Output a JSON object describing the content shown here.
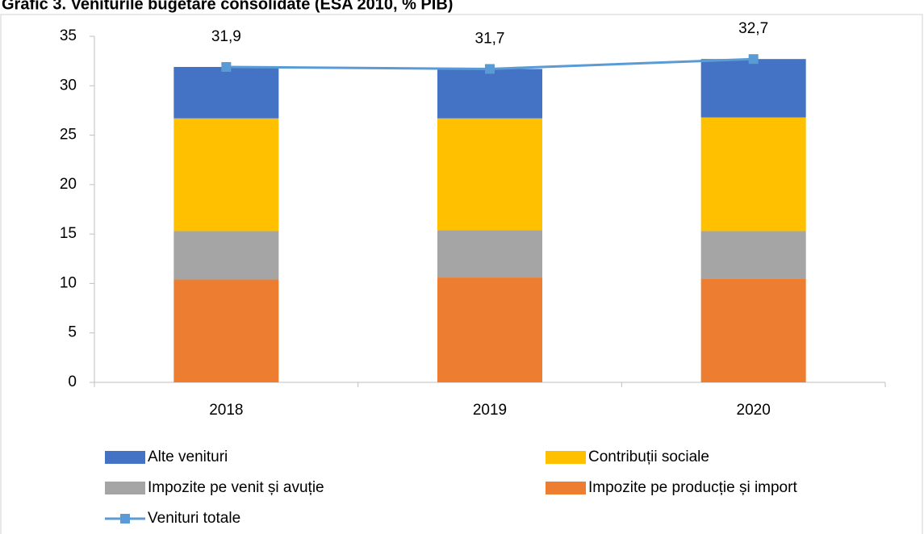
{
  "chart_data": {
    "type": "bar",
    "stacked": true,
    "title": "Grafic 3. Veniturile bugetare consolidate (ESA 2010, % PIB)",
    "categories": [
      "2018",
      "2019",
      "2020"
    ],
    "series": [
      {
        "name": "Impozite pe producție și import",
        "color": "#ed7d31",
        "values": [
          10.4,
          10.6,
          10.5
        ]
      },
      {
        "name": "Impozite pe venit și avuție",
        "color": "#a5a5a5",
        "values": [
          4.9,
          4.8,
          4.8
        ]
      },
      {
        "name": "Contribuții sociale",
        "color": "#ffc000",
        "values": [
          11.4,
          11.3,
          11.5
        ]
      },
      {
        "name": "Alte venituri",
        "color": "#4472c4",
        "values": [
          5.2,
          5.0,
          5.9
        ]
      },
      {
        "name": "Venituri totale",
        "type": "line",
        "color": "#5b9bd5",
        "values": [
          31.9,
          31.7,
          32.7
        ],
        "value_labels": [
          "31,9",
          "31,7",
          "32,7"
        ]
      }
    ],
    "ylim": [
      0,
      35
    ],
    "yticks": [
      0,
      5,
      10,
      15,
      20,
      25,
      30,
      35
    ],
    "grid": false
  }
}
